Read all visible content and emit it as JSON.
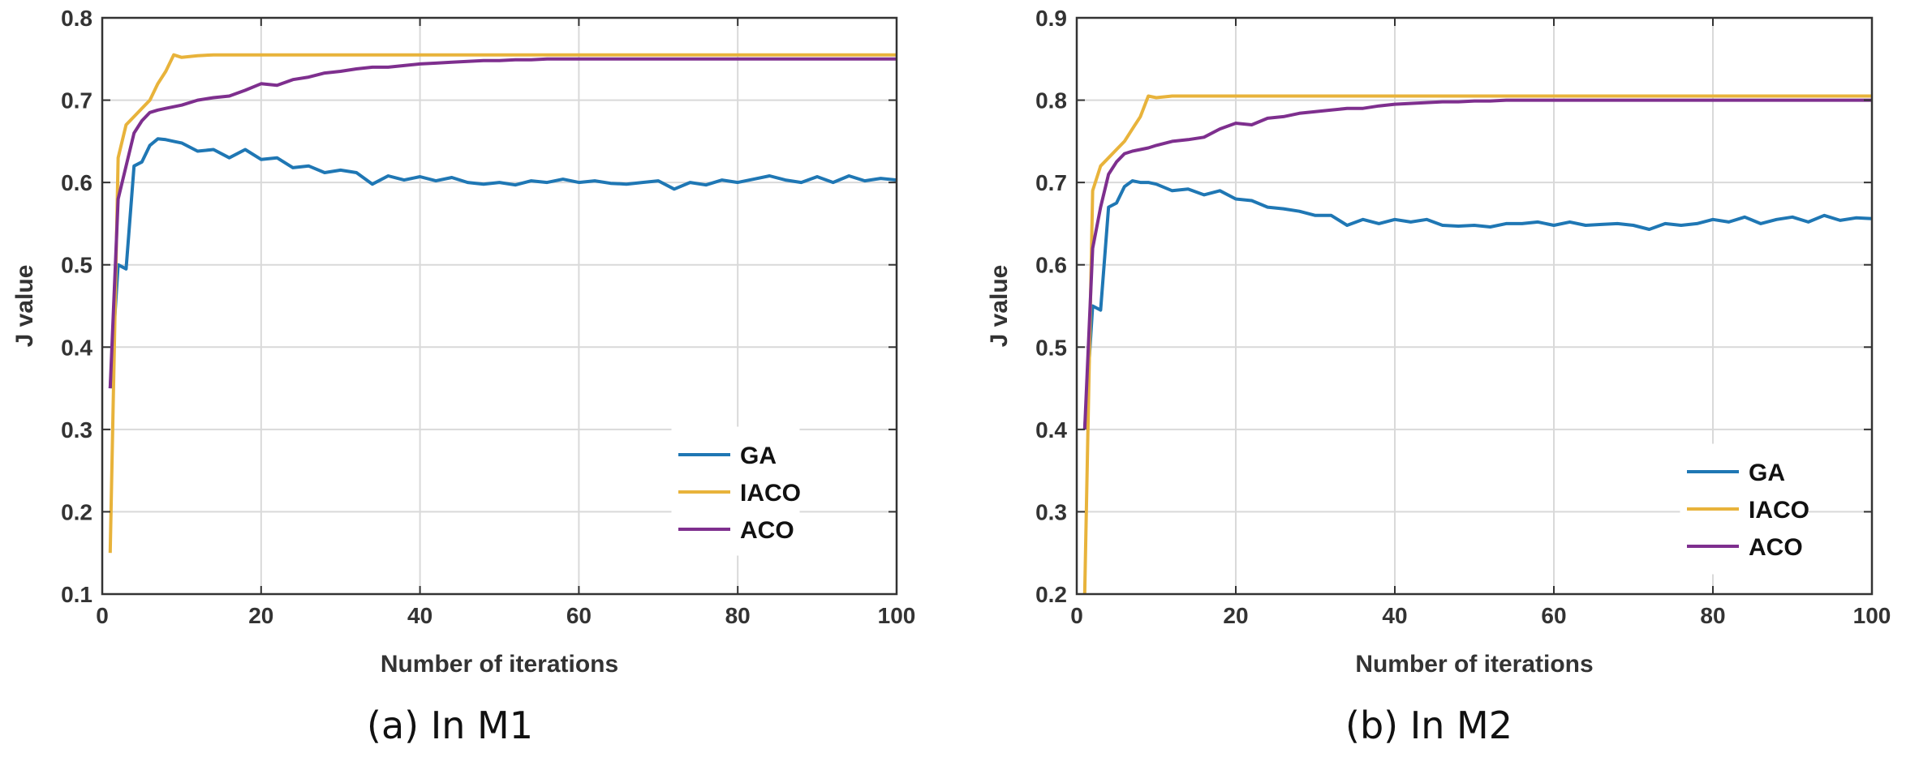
{
  "chart_data": [
    {
      "type": "line",
      "caption": "(a) In M1",
      "xlabel": "Number of iterations",
      "ylabel": "J  value",
      "xlim": [
        0,
        100
      ],
      "ylim": [
        0.1,
        0.8
      ],
      "xticks": [
        "0",
        "20",
        "40",
        "60",
        "80",
        "100"
      ],
      "yticks": [
        "0.1",
        "0.2",
        "0.3",
        "0.4",
        "0.5",
        "0.6",
        "0.7",
        "0.8"
      ],
      "grid": true,
      "legend_position": "bottom-right",
      "x": [
        1,
        2,
        3,
        4,
        5,
        6,
        7,
        8,
        9,
        10,
        12,
        14,
        16,
        18,
        20,
        22,
        24,
        26,
        28,
        30,
        32,
        34,
        36,
        38,
        40,
        42,
        44,
        46,
        48,
        50,
        52,
        54,
        56,
        58,
        60,
        62,
        64,
        66,
        68,
        70,
        72,
        74,
        76,
        78,
        80,
        82,
        84,
        86,
        88,
        90,
        92,
        94,
        96,
        98,
        100
      ],
      "series": [
        {
          "name": "GA",
          "color": "#1f77b4",
          "values": [
            0.35,
            0.5,
            0.495,
            0.62,
            0.625,
            0.645,
            0.653,
            0.652,
            0.65,
            0.648,
            0.638,
            0.64,
            0.63,
            0.64,
            0.628,
            0.63,
            0.618,
            0.62,
            0.612,
            0.615,
            0.612,
            0.598,
            0.608,
            0.603,
            0.607,
            0.602,
            0.606,
            0.6,
            0.598,
            0.6,
            0.597,
            0.602,
            0.6,
            0.604,
            0.6,
            0.602,
            0.599,
            0.598,
            0.6,
            0.602,
            0.592,
            0.6,
            0.597,
            0.603,
            0.6,
            0.604,
            0.608,
            0.603,
            0.6,
            0.607,
            0.6,
            0.608,
            0.602,
            0.605,
            0.603
          ]
        },
        {
          "name": "IACO",
          "color": "#e8b33b",
          "values": [
            0.15,
            0.63,
            0.67,
            0.68,
            0.69,
            0.7,
            0.72,
            0.735,
            0.755,
            0.752,
            0.754,
            0.755,
            0.755,
            0.755,
            0.755,
            0.755,
            0.755,
            0.755,
            0.755,
            0.755,
            0.755,
            0.755,
            0.755,
            0.755,
            0.755,
            0.755,
            0.755,
            0.755,
            0.755,
            0.755,
            0.755,
            0.755,
            0.755,
            0.755,
            0.755,
            0.755,
            0.755,
            0.755,
            0.755,
            0.755,
            0.755,
            0.755,
            0.755,
            0.755,
            0.755,
            0.755,
            0.755,
            0.755,
            0.755,
            0.755,
            0.755,
            0.755,
            0.755,
            0.755,
            0.755
          ]
        },
        {
          "name": "ACO",
          "color": "#7e2f8e",
          "values": [
            0.35,
            0.58,
            0.62,
            0.66,
            0.675,
            0.685,
            0.688,
            0.69,
            0.692,
            0.694,
            0.7,
            0.703,
            0.705,
            0.712,
            0.72,
            0.718,
            0.725,
            0.728,
            0.733,
            0.735,
            0.738,
            0.74,
            0.74,
            0.742,
            0.744,
            0.745,
            0.746,
            0.747,
            0.748,
            0.748,
            0.749,
            0.749,
            0.75,
            0.75,
            0.75,
            0.75,
            0.75,
            0.75,
            0.75,
            0.75,
            0.75,
            0.75,
            0.75,
            0.75,
            0.75,
            0.75,
            0.75,
            0.75,
            0.75,
            0.75,
            0.75,
            0.75,
            0.75,
            0.75,
            0.75
          ]
        }
      ]
    },
    {
      "type": "line",
      "caption": "(b) In M2",
      "xlabel": "Number of iterations",
      "ylabel": "J  value",
      "xlim": [
        0,
        100
      ],
      "ylim": [
        0.2,
        0.9
      ],
      "xticks": [
        "0",
        "20",
        "40",
        "60",
        "80",
        "100"
      ],
      "yticks": [
        "0.2",
        "0.3",
        "0.4",
        "0.5",
        "0.6",
        "0.7",
        "0.8",
        "0.9"
      ],
      "grid": true,
      "legend_position": "bottom-right",
      "x": [
        1,
        2,
        3,
        4,
        5,
        6,
        7,
        8,
        9,
        10,
        12,
        14,
        16,
        18,
        20,
        22,
        24,
        26,
        28,
        30,
        32,
        34,
        36,
        38,
        40,
        42,
        44,
        46,
        48,
        50,
        52,
        54,
        56,
        58,
        60,
        62,
        64,
        66,
        68,
        70,
        72,
        74,
        76,
        78,
        80,
        82,
        84,
        86,
        88,
        90,
        92,
        94,
        96,
        98,
        100
      ],
      "series": [
        {
          "name": "GA",
          "color": "#1f77b4",
          "values": [
            0.4,
            0.55,
            0.545,
            0.67,
            0.675,
            0.695,
            0.702,
            0.7,
            0.7,
            0.698,
            0.69,
            0.692,
            0.685,
            0.69,
            0.68,
            0.678,
            0.67,
            0.668,
            0.665,
            0.66,
            0.66,
            0.648,
            0.655,
            0.65,
            0.655,
            0.652,
            0.655,
            0.648,
            0.647,
            0.648,
            0.646,
            0.65,
            0.65,
            0.652,
            0.648,
            0.652,
            0.648,
            0.649,
            0.65,
            0.648,
            0.643,
            0.65,
            0.648,
            0.65,
            0.655,
            0.652,
            0.658,
            0.65,
            0.655,
            0.658,
            0.652,
            0.66,
            0.654,
            0.657,
            0.656
          ]
        },
        {
          "name": "IACO",
          "color": "#e8b33b",
          "values": [
            0.2,
            0.69,
            0.72,
            0.73,
            0.74,
            0.75,
            0.765,
            0.78,
            0.805,
            0.803,
            0.805,
            0.805,
            0.805,
            0.805,
            0.805,
            0.805,
            0.805,
            0.805,
            0.805,
            0.805,
            0.805,
            0.805,
            0.805,
            0.805,
            0.805,
            0.805,
            0.805,
            0.805,
            0.805,
            0.805,
            0.805,
            0.805,
            0.805,
            0.805,
            0.805,
            0.805,
            0.805,
            0.805,
            0.805,
            0.805,
            0.805,
            0.805,
            0.805,
            0.805,
            0.805,
            0.805,
            0.805,
            0.805,
            0.805,
            0.805,
            0.805,
            0.805,
            0.805,
            0.805,
            0.805
          ]
        },
        {
          "name": "ACO",
          "color": "#7e2f8e",
          "values": [
            0.4,
            0.62,
            0.67,
            0.71,
            0.725,
            0.735,
            0.738,
            0.74,
            0.742,
            0.745,
            0.75,
            0.752,
            0.755,
            0.765,
            0.772,
            0.77,
            0.778,
            0.78,
            0.784,
            0.786,
            0.788,
            0.79,
            0.79,
            0.793,
            0.795,
            0.796,
            0.797,
            0.798,
            0.798,
            0.799,
            0.799,
            0.8,
            0.8,
            0.8,
            0.8,
            0.8,
            0.8,
            0.8,
            0.8,
            0.8,
            0.8,
            0.8,
            0.8,
            0.8,
            0.8,
            0.8,
            0.8,
            0.8,
            0.8,
            0.8,
            0.8,
            0.8,
            0.8,
            0.8,
            0.8
          ]
        }
      ]
    }
  ]
}
